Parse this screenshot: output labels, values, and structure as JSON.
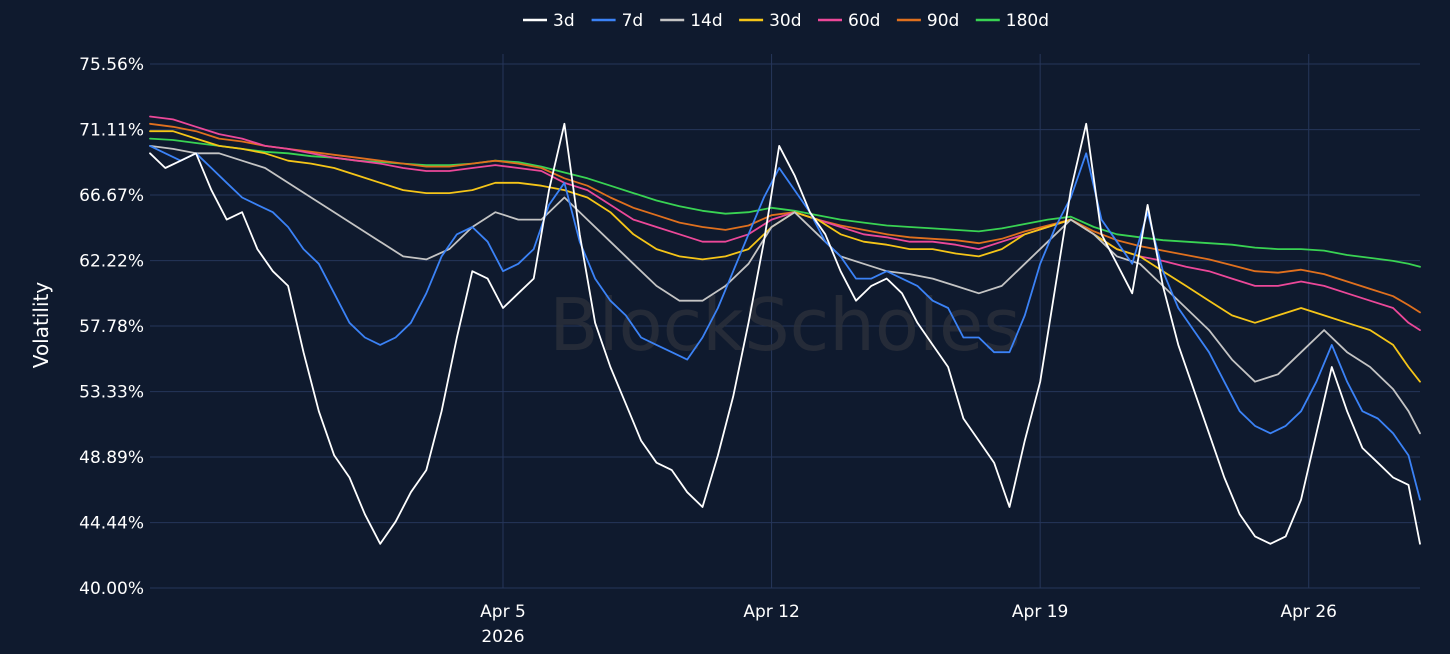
{
  "chart_data": {
    "type": "line",
    "title": "",
    "xlabel": "",
    "ylabel": "Volatility",
    "watermark": "BlockScholes",
    "ylim": [
      40.0,
      75.56
    ],
    "xlim": [
      -4.2,
      28.9
    ],
    "y_ticks": [
      "40.00%",
      "44.44%",
      "48.89%",
      "53.33%",
      "57.78%",
      "62.22%",
      "66.67%",
      "71.11%",
      "75.56%"
    ],
    "y_tick_values": [
      40.0,
      44.44,
      48.89,
      53.33,
      57.78,
      62.22,
      66.67,
      71.11,
      75.56
    ],
    "x_ticks": [
      {
        "value": 5,
        "label": "Apr 5",
        "sublabel": "2026"
      },
      {
        "value": 12,
        "label": "Apr 12",
        "sublabel": ""
      },
      {
        "value": 19,
        "label": "Apr 19",
        "sublabel": ""
      },
      {
        "value": 26,
        "label": "Apr 26",
        "sublabel": ""
      }
    ],
    "x_unit": "day of April 2026",
    "legend_position": "top-center",
    "grid": true,
    "colors": {
      "background": "#0f1a2e",
      "grid": "#26365a",
      "text": "#ffffff",
      "watermark": "#2a2f3a"
    },
    "series": [
      {
        "name": "3d",
        "color": "#ffffff",
        "x": [
          -4.2,
          -3.8,
          -3.4,
          -3.0,
          -2.6,
          -2.2,
          -1.8,
          -1.4,
          -1.0,
          -0.6,
          -0.2,
          0.2,
          0.6,
          1.0,
          1.4,
          1.8,
          2.2,
          2.6,
          3.0,
          3.4,
          3.8,
          4.2,
          4.6,
          5.0,
          5.4,
          5.8,
          6.2,
          6.6,
          7.0,
          7.4,
          7.8,
          8.2,
          8.6,
          9.0,
          9.4,
          9.8,
          10.2,
          10.6,
          11.0,
          11.4,
          11.8,
          12.2,
          12.6,
          13.0,
          13.4,
          13.8,
          14.2,
          14.6,
          15.0,
          15.4,
          15.8,
          16.2,
          16.6,
          17.0,
          17.4,
          17.8,
          18.2,
          18.6,
          19.0,
          19.4,
          19.8,
          20.2,
          20.6,
          21.0,
          21.4,
          21.8,
          22.2,
          22.6,
          23.0,
          23.4,
          23.8,
          24.2,
          24.6,
          25.0,
          25.4,
          25.8,
          26.2,
          26.6,
          27.0,
          27.4,
          27.8,
          28.2,
          28.6,
          28.9
        ],
        "values": [
          69.5,
          68.5,
          69.0,
          69.5,
          67.0,
          65.0,
          65.5,
          63.0,
          61.5,
          60.5,
          56.0,
          52.0,
          49.0,
          47.5,
          45.0,
          43.0,
          44.5,
          46.5,
          48.0,
          52.0,
          57.0,
          61.5,
          61.0,
          59.0,
          60.0,
          61.0,
          67.0,
          71.5,
          64.0,
          58.0,
          55.0,
          52.5,
          50.0,
          48.5,
          48.0,
          46.5,
          45.5,
          49.0,
          53.0,
          58.0,
          63.5,
          70.0,
          68.0,
          65.5,
          64.0,
          61.5,
          59.5,
          60.5,
          61.0,
          60.0,
          58.0,
          56.5,
          55.0,
          51.5,
          50.0,
          48.5,
          45.5,
          50.0,
          54.0,
          60.5,
          67.0,
          71.5,
          64.0,
          62.0,
          60.0,
          66.0,
          60.5,
          56.5,
          53.5,
          50.5,
          47.5,
          45.0,
          43.5,
          43.0,
          43.5,
          46.0,
          50.5,
          55.0,
          52.0,
          49.5,
          48.5,
          47.5,
          47.0,
          43.0
        ]
      },
      {
        "name": "7d",
        "color": "#3b82f6",
        "x": [
          -4.2,
          -3.8,
          -3.4,
          -3.0,
          -2.6,
          -2.2,
          -1.8,
          -1.4,
          -1.0,
          -0.6,
          -0.2,
          0.2,
          0.6,
          1.0,
          1.4,
          1.8,
          2.2,
          2.6,
          3.0,
          3.4,
          3.8,
          4.2,
          4.6,
          5.0,
          5.4,
          5.8,
          6.2,
          6.6,
          7.0,
          7.4,
          7.8,
          8.2,
          8.6,
          9.0,
          9.4,
          9.8,
          10.2,
          10.6,
          11.0,
          11.4,
          11.8,
          12.2,
          12.6,
          13.0,
          13.4,
          13.8,
          14.2,
          14.6,
          15.0,
          15.4,
          15.8,
          16.2,
          16.6,
          17.0,
          17.4,
          17.8,
          18.2,
          18.6,
          19.0,
          19.4,
          19.8,
          20.2,
          20.6,
          21.0,
          21.4,
          21.8,
          22.2,
          22.6,
          23.0,
          23.4,
          23.8,
          24.2,
          24.6,
          25.0,
          25.4,
          25.8,
          26.2,
          26.6,
          27.0,
          27.4,
          27.8,
          28.2,
          28.6,
          28.9
        ],
        "values": [
          70.0,
          69.5,
          69.0,
          69.5,
          68.5,
          67.5,
          66.5,
          66.0,
          65.5,
          64.5,
          63.0,
          62.0,
          60.0,
          58.0,
          57.0,
          56.5,
          57.0,
          58.0,
          60.0,
          62.5,
          64.0,
          64.5,
          63.5,
          61.5,
          62.0,
          63.0,
          66.0,
          67.5,
          63.5,
          61.0,
          59.5,
          58.5,
          57.0,
          56.5,
          56.0,
          55.5,
          57.0,
          59.0,
          61.5,
          64.0,
          66.5,
          68.5,
          67.0,
          65.5,
          63.5,
          62.5,
          61.0,
          61.0,
          61.5,
          61.0,
          60.5,
          59.5,
          59.0,
          57.0,
          57.0,
          56.0,
          56.0,
          58.5,
          62.0,
          64.5,
          66.5,
          69.5,
          65.0,
          63.5,
          62.0,
          65.5,
          61.5,
          59.0,
          57.5,
          56.0,
          54.0,
          52.0,
          51.0,
          50.5,
          51.0,
          52.0,
          54.0,
          56.5,
          54.0,
          52.0,
          51.5,
          50.5,
          49.0,
          46.0
        ]
      },
      {
        "name": "14d",
        "color": "#c4c4c4",
        "x": [
          -4.2,
          -3.6,
          -3.0,
          -2.4,
          -1.8,
          -1.2,
          -0.6,
          0.0,
          0.6,
          1.2,
          1.8,
          2.4,
          3.0,
          3.6,
          4.2,
          4.8,
          5.4,
          6.0,
          6.6,
          7.2,
          7.8,
          8.4,
          9.0,
          9.6,
          10.2,
          10.8,
          11.4,
          12.0,
          12.6,
          13.2,
          13.8,
          14.4,
          15.0,
          15.6,
          16.2,
          16.8,
          17.4,
          18.0,
          18.6,
          19.2,
          19.8,
          20.4,
          21.0,
          21.6,
          22.2,
          22.8,
          23.4,
          24.0,
          24.6,
          25.2,
          25.8,
          26.4,
          27.0,
          27.6,
          28.2,
          28.6,
          28.9
        ],
        "values": [
          70.0,
          69.8,
          69.5,
          69.5,
          69.0,
          68.5,
          67.5,
          66.5,
          65.5,
          64.5,
          63.5,
          62.5,
          62.3,
          63.0,
          64.5,
          65.5,
          65.0,
          65.0,
          66.5,
          65.0,
          63.5,
          62.0,
          60.5,
          59.5,
          59.5,
          60.5,
          62.0,
          64.5,
          65.5,
          64.0,
          62.5,
          62.0,
          61.5,
          61.3,
          61.0,
          60.5,
          60.0,
          60.5,
          62.0,
          63.5,
          65.0,
          64.0,
          62.5,
          62.0,
          60.5,
          59.0,
          57.5,
          55.5,
          54.0,
          54.5,
          56.0,
          57.5,
          56.0,
          55.0,
          53.5,
          52.0,
          50.5
        ]
      },
      {
        "name": "30d",
        "color": "#f5c518",
        "x": [
          -4.2,
          -3.6,
          -3.0,
          -2.4,
          -1.8,
          -1.2,
          -0.6,
          0.0,
          0.6,
          1.2,
          1.8,
          2.4,
          3.0,
          3.6,
          4.2,
          4.8,
          5.4,
          6.0,
          6.6,
          7.2,
          7.8,
          8.4,
          9.0,
          9.6,
          10.2,
          10.8,
          11.4,
          12.0,
          12.6,
          13.2,
          13.8,
          14.4,
          15.0,
          15.6,
          16.2,
          16.8,
          17.4,
          18.0,
          18.6,
          19.2,
          19.8,
          20.4,
          21.0,
          21.6,
          22.2,
          22.8,
          23.4,
          24.0,
          24.6,
          25.2,
          25.8,
          26.4,
          27.0,
          27.6,
          28.2,
          28.6,
          28.9
        ],
        "values": [
          71.0,
          71.0,
          70.5,
          70.0,
          69.8,
          69.5,
          69.0,
          68.8,
          68.5,
          68.0,
          67.5,
          67.0,
          66.8,
          66.8,
          67.0,
          67.5,
          67.5,
          67.3,
          67.0,
          66.5,
          65.5,
          64.0,
          63.0,
          62.5,
          62.3,
          62.5,
          63.0,
          64.5,
          65.5,
          65.0,
          64.0,
          63.5,
          63.3,
          63.0,
          63.0,
          62.7,
          62.5,
          63.0,
          64.0,
          64.5,
          65.0,
          64.0,
          63.0,
          62.5,
          61.5,
          60.5,
          59.5,
          58.5,
          58.0,
          58.5,
          59.0,
          58.5,
          58.0,
          57.5,
          56.5,
          55.0,
          54.0
        ]
      },
      {
        "name": "60d",
        "color": "#ec4899",
        "x": [
          -4.2,
          -3.6,
          -3.0,
          -2.4,
          -1.8,
          -1.2,
          -0.6,
          0.0,
          0.6,
          1.2,
          1.8,
          2.4,
          3.0,
          3.6,
          4.2,
          4.8,
          5.4,
          6.0,
          6.6,
          7.2,
          7.8,
          8.4,
          9.0,
          9.6,
          10.2,
          10.8,
          11.4,
          12.0,
          12.6,
          13.2,
          13.8,
          14.4,
          15.0,
          15.6,
          16.2,
          16.8,
          17.4,
          18.0,
          18.6,
          19.2,
          19.8,
          20.4,
          21.0,
          21.6,
          22.2,
          22.8,
          23.4,
          24.0,
          24.6,
          25.2,
          25.8,
          26.4,
          27.0,
          27.6,
          28.2,
          28.6,
          28.9
        ],
        "values": [
          72.0,
          71.8,
          71.3,
          70.8,
          70.5,
          70.0,
          69.8,
          69.5,
          69.2,
          69.0,
          68.8,
          68.5,
          68.3,
          68.3,
          68.5,
          68.7,
          68.5,
          68.3,
          67.5,
          67.0,
          66.0,
          65.0,
          64.5,
          64.0,
          63.5,
          63.5,
          64.0,
          65.0,
          65.5,
          65.0,
          64.5,
          64.0,
          63.8,
          63.5,
          63.5,
          63.3,
          63.0,
          63.5,
          64.0,
          64.5,
          65.0,
          64.0,
          63.0,
          62.5,
          62.2,
          61.8,
          61.5,
          61.0,
          60.5,
          60.5,
          60.8,
          60.5,
          60.0,
          59.5,
          59.0,
          58.0,
          57.5
        ]
      },
      {
        "name": "90d",
        "color": "#e0701e",
        "x": [
          -4.2,
          -3.6,
          -3.0,
          -2.4,
          -1.8,
          -1.2,
          -0.6,
          0.0,
          0.6,
          1.2,
          1.8,
          2.4,
          3.0,
          3.6,
          4.2,
          4.8,
          5.4,
          6.0,
          6.6,
          7.2,
          7.8,
          8.4,
          9.0,
          9.6,
          10.2,
          10.8,
          11.4,
          12.0,
          12.6,
          13.2,
          13.8,
          14.4,
          15.0,
          15.6,
          16.2,
          16.8,
          17.4,
          18.0,
          18.6,
          19.2,
          19.8,
          20.4,
          21.0,
          21.6,
          22.2,
          22.8,
          23.4,
          24.0,
          24.6,
          25.2,
          25.8,
          26.4,
          27.0,
          27.6,
          28.2,
          28.6,
          28.9
        ],
        "values": [
          71.5,
          71.3,
          71.0,
          70.5,
          70.3,
          70.0,
          69.8,
          69.6,
          69.4,
          69.2,
          69.0,
          68.8,
          68.6,
          68.6,
          68.8,
          69.0,
          68.8,
          68.5,
          67.8,
          67.3,
          66.5,
          65.8,
          65.3,
          64.8,
          64.5,
          64.3,
          64.6,
          65.3,
          65.5,
          65.0,
          64.6,
          64.3,
          64.0,
          63.8,
          63.7,
          63.6,
          63.4,
          63.7,
          64.2,
          64.6,
          65.0,
          64.2,
          63.6,
          63.2,
          62.9,
          62.6,
          62.3,
          61.9,
          61.5,
          61.4,
          61.6,
          61.3,
          60.8,
          60.3,
          59.8,
          59.2,
          58.7
        ]
      },
      {
        "name": "180d",
        "color": "#39d353",
        "x": [
          -4.2,
          -3.6,
          -3.0,
          -2.4,
          -1.8,
          -1.2,
          -0.6,
          0.0,
          0.6,
          1.2,
          1.8,
          2.4,
          3.0,
          3.6,
          4.2,
          4.8,
          5.4,
          6.0,
          6.6,
          7.2,
          7.8,
          8.4,
          9.0,
          9.6,
          10.2,
          10.8,
          11.4,
          12.0,
          12.6,
          13.2,
          13.8,
          14.4,
          15.0,
          15.6,
          16.2,
          16.8,
          17.4,
          18.0,
          18.6,
          19.2,
          19.8,
          20.4,
          21.0,
          21.6,
          22.2,
          22.8,
          23.4,
          24.0,
          24.6,
          25.2,
          25.8,
          26.4,
          27.0,
          27.6,
          28.2,
          28.6,
          28.9
        ],
        "values": [
          70.5,
          70.4,
          70.2,
          70.0,
          69.8,
          69.6,
          69.5,
          69.3,
          69.2,
          69.0,
          68.9,
          68.8,
          68.7,
          68.7,
          68.8,
          69.0,
          68.9,
          68.6,
          68.2,
          67.8,
          67.3,
          66.8,
          66.3,
          65.9,
          65.6,
          65.4,
          65.5,
          65.8,
          65.6,
          65.3,
          65.0,
          64.8,
          64.6,
          64.5,
          64.4,
          64.3,
          64.2,
          64.4,
          64.7,
          65.0,
          65.2,
          64.5,
          64.0,
          63.8,
          63.6,
          63.5,
          63.4,
          63.3,
          63.1,
          63.0,
          63.0,
          62.9,
          62.6,
          62.4,
          62.2,
          62.0,
          61.8
        ]
      }
    ]
  }
}
